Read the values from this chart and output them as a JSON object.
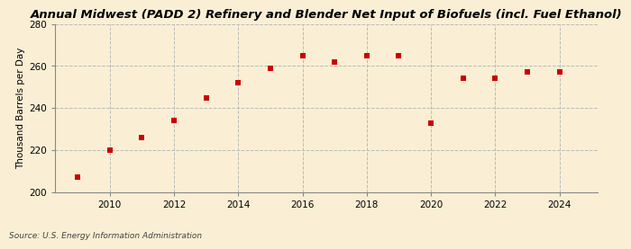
{
  "title": "Annual Midwest (PADD 2) Refinery and Blender Net Input of Biofuels (incl. Fuel Ethanol)",
  "ylabel": "Thousand Barrels per Day",
  "source": "Source: U.S. Energy Information Administration",
  "years": [
    2009,
    2010,
    2011,
    2012,
    2013,
    2014,
    2015,
    2016,
    2017,
    2018,
    2019,
    2020,
    2021,
    2022,
    2023,
    2024
  ],
  "values": [
    207,
    220,
    226,
    234,
    245,
    252,
    259,
    265,
    262,
    265,
    265,
    233,
    254,
    254,
    257,
    257
  ],
  "marker_color": "#cc0000",
  "marker": "s",
  "marker_size": 4,
  "ylim": [
    200,
    280
  ],
  "yticks": [
    200,
    220,
    240,
    260,
    280
  ],
  "xticks": [
    2010,
    2012,
    2014,
    2016,
    2018,
    2020,
    2022,
    2024
  ],
  "xlim": [
    2008.3,
    2025.2
  ],
  "background_color": "#faefd4",
  "grid_color": "#bbbbbb",
  "title_fontsize": 9.5,
  "label_fontsize": 7.5,
  "tick_fontsize": 7.5,
  "source_fontsize": 6.5
}
